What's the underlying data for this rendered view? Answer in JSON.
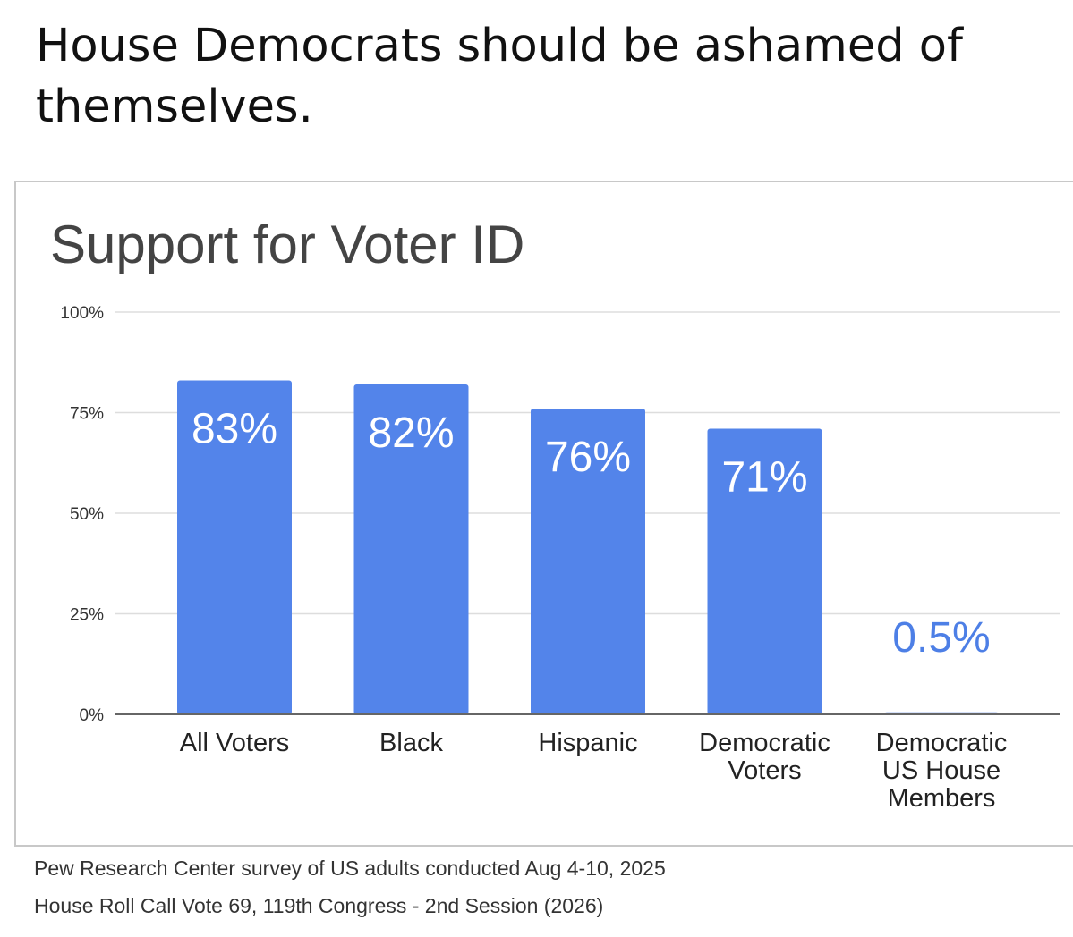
{
  "headline": "House Democrats should be ashamed of themselves.",
  "colors": {
    "bar": "#5384ea",
    "bar_label": "#ffffff",
    "outside_label": "#4d7fe6",
    "grid": "#dddddd",
    "axis": "#666666",
    "tick_text": "#333333"
  },
  "chart_data": {
    "type": "bar",
    "title": "Support for Voter ID",
    "categories": [
      [
        "All Voters"
      ],
      [
        "Black"
      ],
      [
        "Hispanic"
      ],
      [
        "Democratic",
        "Voters"
      ],
      [
        "Democratic",
        "US House",
        "Members"
      ]
    ],
    "values": [
      83,
      82,
      76,
      71,
      0.5
    ],
    "data_labels": [
      "83%",
      "82%",
      "76%",
      "71%",
      "0.5%"
    ],
    "yticks": [
      0,
      25,
      50,
      75,
      100
    ],
    "ytick_labels": [
      "0%",
      "25%",
      "50%",
      "75%",
      "100%"
    ],
    "ylim": [
      0,
      100
    ],
    "xlabel": "",
    "ylabel": "",
    "grid": true
  },
  "sources": [
    "Pew Research Center survey of US adults conducted Aug 4-10, 2025",
    "House Roll Call Vote 69, 119th Congress - 2nd Session (2026)"
  ]
}
